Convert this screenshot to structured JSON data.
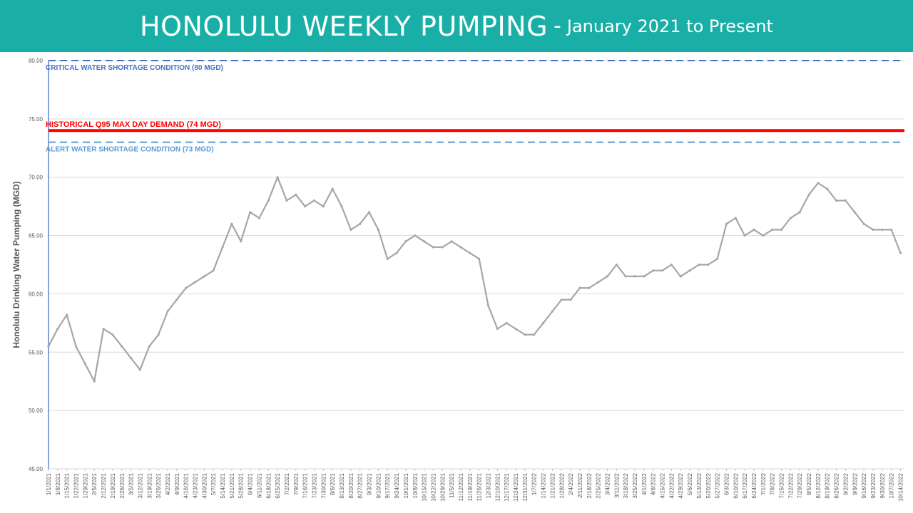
{
  "header": {
    "title": "HONOLULU WEEKLY PUMPING",
    "separator": "-",
    "subtitle": "January 2021 to Present",
    "background_color": "#1aafa6"
  },
  "chart_data": {
    "type": "line",
    "title": "HONOLULU WEEKLY PUMPING - January 2021 to Present",
    "ylabel": "Honolulu Drinking Water Pumping (MGD)",
    "xlabel": "",
    "ylim": [
      45,
      80
    ],
    "yticks": [
      "45.00",
      "50.00",
      "55.00",
      "60.00",
      "65.00",
      "70.00",
      "75.00",
      "80.00"
    ],
    "grid": true,
    "x_start": "2021-01-01",
    "x_end": "2022-10-17",
    "xtick_labels": [
      "1/1/2021",
      "1/8/2021",
      "1/15/2021",
      "1/22/2021",
      "1/29/2021",
      "2/5/2021",
      "2/12/2021",
      "2/19/2021",
      "2/26/2021",
      "3/5/2021",
      "3/12/2021",
      "3/19/2021",
      "3/26/2021",
      "4/2/2021",
      "4/9/2021",
      "4/16/2021",
      "4/23/2021",
      "4/30/2021",
      "5/7/2021",
      "5/14/2021",
      "5/21/2021",
      "5/28/2021",
      "6/4/2021",
      "6/11/2021",
      "6/18/2021",
      "6/25/2021",
      "7/2/2021",
      "7/9/2021",
      "7/16/2021",
      "7/23/2021",
      "7/30/2021",
      "8/6/2021",
      "8/13/2021",
      "8/20/2021",
      "8/27/2021",
      "9/3/2021",
      "9/10/2021",
      "9/17/2021",
      "9/24/2021",
      "10/1/2021",
      "10/8/2021",
      "10/15/2021",
      "10/22/2021",
      "10/29/2021",
      "11/5/2021",
      "11/12/2021",
      "11/19/2021",
      "11/26/2021",
      "12/3/2021",
      "12/10/2021",
      "12/17/2021",
      "12/24/2021",
      "12/31/2021",
      "1/7/2022",
      "1/14/2022",
      "1/21/2022",
      "1/28/2022",
      "2/4/2022",
      "2/11/2022",
      "2/18/2022",
      "2/25/2022",
      "3/4/2022",
      "3/11/2022",
      "3/18/2022",
      "3/25/2022",
      "4/1/2022",
      "4/8/2022",
      "4/15/2022",
      "4/22/2022",
      "4/29/2022",
      "5/6/2022",
      "5/13/2022",
      "5/20/2022",
      "5/27/2022",
      "6/3/2022",
      "6/10/2022",
      "6/17/2022",
      "6/24/2022",
      "7/1/2022",
      "7/8/2022",
      "7/15/2022",
      "7/22/2022",
      "7/29/2022",
      "8/5/2022",
      "8/12/2022",
      "8/19/2022",
      "8/26/2022",
      "9/2/2022",
      "9/9/2022",
      "9/16/2022",
      "9/23/2022",
      "9/30/2022",
      "10/7/2022",
      "10/14/2022"
    ],
    "reference_lines": [
      {
        "label": "CRITICAL WATER SHORTAGE CONDITION (80 MGD)",
        "value": 80,
        "color": "#4472c4",
        "style": "dashed"
      },
      {
        "label": "HISTORICAL Q95 MAX DAY DEMAND (74 MGD)",
        "value": 74,
        "color": "#ff0000",
        "style": "solid"
      },
      {
        "label": "ALERT WATER SHORTAGE CONDITION (73 MGD)",
        "value": 73,
        "color": "#5b9bd5",
        "style": "dashed"
      }
    ],
    "series": [
      {
        "color": "#a6a6a6",
        "x": [
          "1/1/2021",
          "1/8/2021",
          "1/15/2021",
          "1/22/2021",
          "1/29/2021",
          "2/5/2021",
          "2/12/2021",
          "2/19/2021",
          "2/26/2021",
          "3/5/2021",
          "3/12/2021",
          "3/19/2021",
          "3/26/2021",
          "4/2/2021",
          "4/9/2021",
          "4/16/2021",
          "4/23/2021",
          "4/30/2021",
          "5/7/2021",
          "5/14/2021",
          "5/21/2021",
          "5/28/2021",
          "6/4/2021",
          "6/11/2021",
          "6/18/2021",
          "6/25/2021",
          "7/2/2021",
          "7/9/2021",
          "7/16/2021",
          "7/23/2021",
          "7/30/2021",
          "8/6/2021",
          "8/13/2021",
          "8/20/2021",
          "8/27/2021",
          "9/3/2021",
          "9/10/2021",
          "9/17/2021",
          "9/24/2021",
          "10/1/2021",
          "10/8/2021",
          "10/15/2021",
          "10/22/2021",
          "10/29/2021",
          "11/5/2021",
          "11/12/2021",
          "11/19/2021",
          "11/26/2021",
          "12/3/2021",
          "12/10/2021",
          "12/17/2021",
          "12/24/2021",
          "12/31/2021",
          "1/7/2022",
          "1/14/2022",
          "1/21/2022",
          "1/28/2022",
          "2/4/2022",
          "2/11/2022",
          "2/18/2022",
          "2/25/2022",
          "3/4/2022",
          "3/11/2022",
          "3/18/2022",
          "3/25/2022",
          "4/1/2022",
          "4/8/2022",
          "4/15/2022",
          "4/22/2022",
          "4/29/2022",
          "5/6/2022",
          "5/13/2022",
          "5/20/2022",
          "5/27/2022",
          "6/3/2022",
          "6/10/2022",
          "6/17/2022",
          "6/24/2022",
          "7/1/2022",
          "7/8/2022",
          "7/15/2022",
          "7/22/2022",
          "7/29/2022",
          "8/5/2022",
          "8/12/2022",
          "8/19/2022",
          "8/26/2022",
          "9/2/2022",
          "9/9/2022",
          "9/16/2022",
          "9/23/2022",
          "9/30/2022",
          "10/7/2022",
          "10/14/2022"
        ],
        "values": [
          55.5,
          57.0,
          58.2,
          55.5,
          54.0,
          52.5,
          57.0,
          56.5,
          55.5,
          54.5,
          53.5,
          55.5,
          56.5,
          58.5,
          59.5,
          60.5,
          61.0,
          61.5,
          62.0,
          64.0,
          66.0,
          64.5,
          67.0,
          66.5,
          68.0,
          70.0,
          68.0,
          68.5,
          67.5,
          68.0,
          67.5,
          69.0,
          67.5,
          65.5,
          66.0,
          67.0,
          65.5,
          63.0,
          63.5,
          64.5,
          65.0,
          64.5,
          64.0,
          64.0,
          64.5,
          64.0,
          63.5,
          63.0,
          59.0,
          57.0,
          57.5,
          57.0,
          56.5,
          56.5,
          57.5,
          58.5,
          59.5,
          59.5,
          60.5,
          60.5,
          61.0,
          61.5,
          62.5,
          61.5,
          61.5,
          61.5,
          62.0,
          62.0,
          62.5,
          61.5,
          62.0,
          62.5,
          62.5,
          63.0,
          66.0,
          66.5,
          65.0,
          65.5,
          65.0,
          65.5,
          65.5,
          66.5,
          67.0,
          68.5,
          69.5,
          69.0,
          68.0,
          68.0,
          67.0,
          66.0,
          65.5,
          65.5,
          65.5,
          63.5
        ]
      }
    ]
  }
}
